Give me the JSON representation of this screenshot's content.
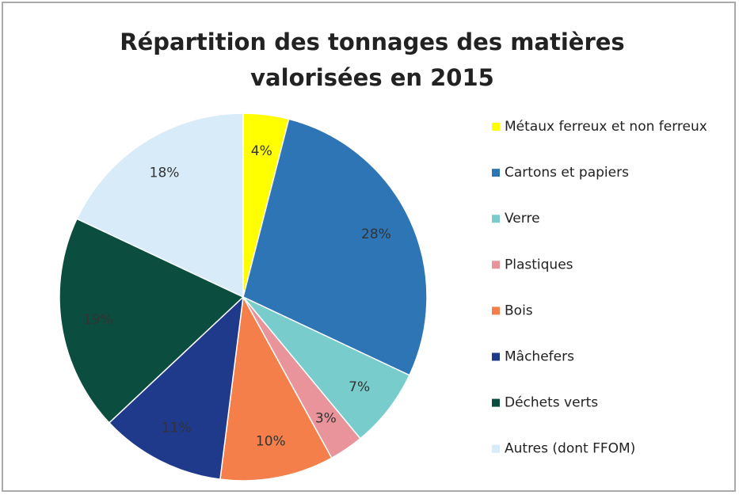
{
  "chart_data": {
    "type": "pie",
    "title": [
      "Répartition des tonnages des matières",
      "valorisées en 2015"
    ],
    "categories": [
      "Métaux ferreux et non ferreux",
      "Cartons et papiers",
      "Verre",
      "Plastiques",
      "Bois",
      "Mâchefers",
      "Déchets verts",
      "Autres (dont FFOM)"
    ],
    "values": [
      4,
      28,
      7,
      3,
      10,
      11,
      19,
      18
    ],
    "value_labels": [
      "4%",
      "28%",
      "7%",
      "3%",
      "10%",
      "11%",
      "19%",
      "18%"
    ],
    "colors": [
      "#ffff00",
      "#2e75b6",
      "#78cccc",
      "#e8949a",
      "#f47f4a",
      "#1f3a8a",
      "#0b4d3e",
      "#d7ecf8"
    ],
    "legend": "right"
  }
}
